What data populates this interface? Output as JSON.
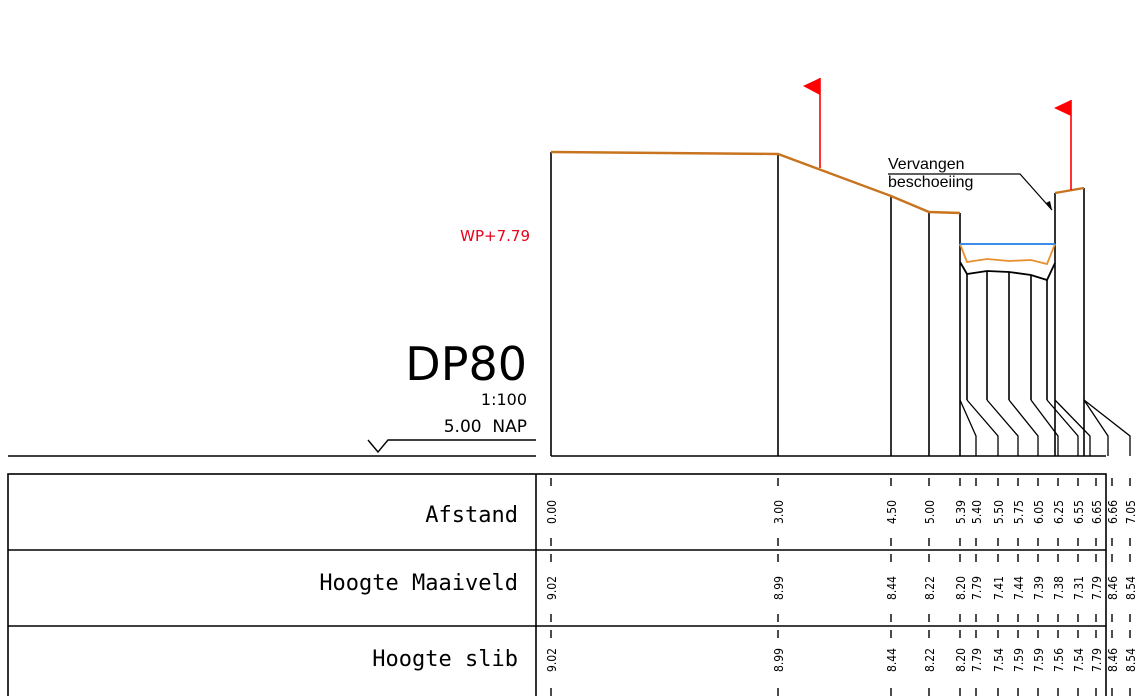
{
  "profile": {
    "title": "DP80",
    "scale": "1:100",
    "reference_level": "5.00  NAP",
    "water_level_label": "WP+7.79",
    "annotation": [
      "Vervangen",
      "beschoeiing"
    ]
  },
  "colors": {
    "ground_line": "#c8741f",
    "water_level": "#3a8ee6",
    "water_label": "#e8001c",
    "flag": "#ff0000",
    "ink": "#000000",
    "sludge_line": "#e89030"
  },
  "table": {
    "rows": [
      {
        "key": "afstand",
        "label": "Afstand"
      },
      {
        "key": "maaiveld",
        "label": "Hoogte Maaiveld"
      },
      {
        "key": "slib",
        "label": "Hoogte slib"
      }
    ],
    "afstand": [
      "0.00",
      "3.00",
      "4.50",
      "5.00",
      "5.39",
      "5.40",
      "5.50",
      "5.75",
      "6.05",
      "6.25",
      "6.55",
      "6.65",
      "6.66",
      "7.05"
    ],
    "maaiveld": [
      "9.02",
      "8.99",
      "8.44",
      "8.22",
      "8.20",
      "7.79",
      "7.41",
      "7.44",
      "7.39",
      "7.38",
      "7.31",
      "7.79",
      "8.46",
      "8.54"
    ],
    "slib": [
      "9.02",
      "8.99",
      "8.44",
      "8.22",
      "8.20",
      "7.79",
      "7.54",
      "7.59",
      "7.59",
      "7.56",
      "7.54",
      "7.79",
      "8.46",
      "8.54"
    ]
  }
}
